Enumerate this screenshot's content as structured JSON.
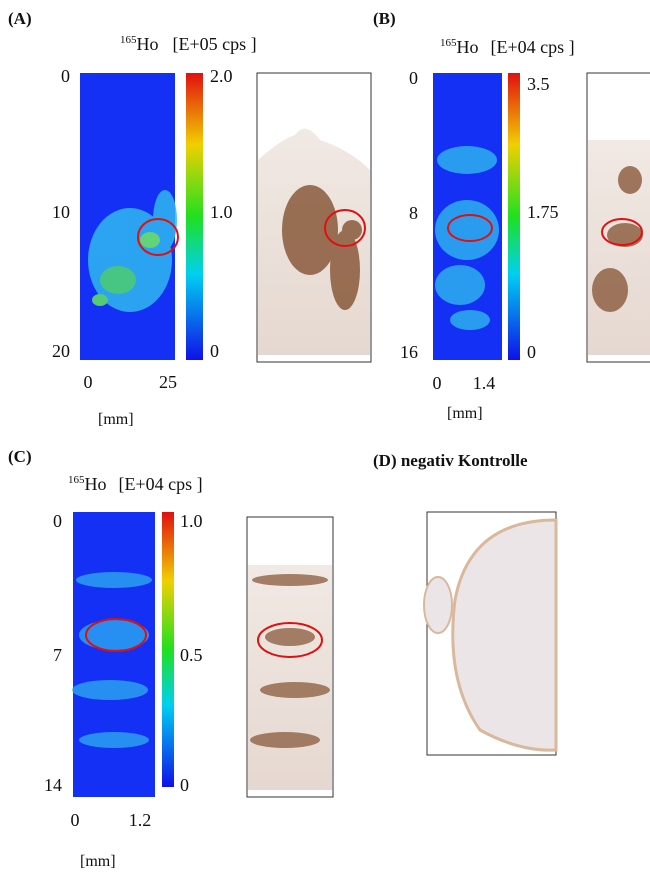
{
  "panels": [
    {
      "label": "(A)",
      "isotope_mass": "165",
      "element": "Ho",
      "unit": "[E+05 cps ]",
      "y_labels": [
        "0",
        "10",
        "20"
      ],
      "scale_labels": [
        "2.0",
        "1.0",
        "0"
      ],
      "x_labels": [
        "0",
        "25"
      ],
      "x_unit": "[mm]"
    },
    {
      "label": "(B)",
      "isotope_mass": "165",
      "element": "Ho",
      "unit": "[E+04 cps ]",
      "y_labels": [
        "0",
        "8",
        "16"
      ],
      "scale_labels": [
        "3.5",
        "1.75",
        "0"
      ],
      "x_labels": [
        "0",
        "1.4"
      ],
      "x_unit": "[mm]"
    },
    {
      "label": "(C)",
      "isotope_mass": "165",
      "element": "Ho",
      "unit": "[E+04 cps ]",
      "y_labels": [
        "0",
        "7",
        "14"
      ],
      "scale_labels": [
        "1.0",
        "0.5",
        "0"
      ],
      "x_labels": [
        "0",
        "1.2"
      ],
      "x_unit": "[mm]"
    },
    {
      "label": "(D) negativ Kontrolle"
    }
  ]
}
